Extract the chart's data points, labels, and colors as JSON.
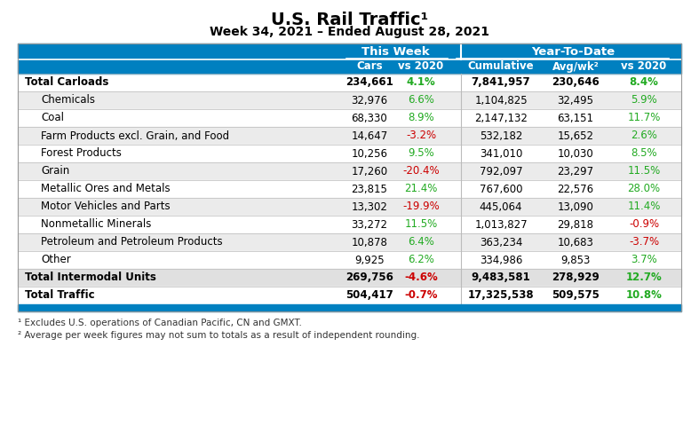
{
  "title": "U.S. Rail Traffic¹",
  "subtitle": "Week 34, 2021 – Ended August 28, 2021",
  "header_bg": "#0080C0",
  "rows": [
    {
      "label": "Total Carloads",
      "bold": true,
      "indent": false,
      "cars": "234,661",
      "vs2020_w": "4.1%",
      "vs2020_w_color": "#22AA22",
      "cumulative": "7,841,957",
      "avgwk": "230,646",
      "vs2020_y": "8.4%",
      "vs2020_y_color": "#22AA22",
      "row_bg": "#FFFFFF"
    },
    {
      "label": "Chemicals",
      "bold": false,
      "indent": true,
      "cars": "32,976",
      "vs2020_w": "6.6%",
      "vs2020_w_color": "#22AA22",
      "cumulative": "1,104,825",
      "avgwk": "32,495",
      "vs2020_y": "5.9%",
      "vs2020_y_color": "#22AA22",
      "row_bg": "#EBEBEB"
    },
    {
      "label": "Coal",
      "bold": false,
      "indent": true,
      "cars": "68,330",
      "vs2020_w": "8.9%",
      "vs2020_w_color": "#22AA22",
      "cumulative": "2,147,132",
      "avgwk": "63,151",
      "vs2020_y": "11.7%",
      "vs2020_y_color": "#22AA22",
      "row_bg": "#FFFFFF"
    },
    {
      "label": "Farm Products excl. Grain, and Food",
      "bold": false,
      "indent": true,
      "cars": "14,647",
      "vs2020_w": "-3.2%",
      "vs2020_w_color": "#CC0000",
      "cumulative": "532,182",
      "avgwk": "15,652",
      "vs2020_y": "2.6%",
      "vs2020_y_color": "#22AA22",
      "row_bg": "#EBEBEB"
    },
    {
      "label": "Forest Products",
      "bold": false,
      "indent": true,
      "cars": "10,256",
      "vs2020_w": "9.5%",
      "vs2020_w_color": "#22AA22",
      "cumulative": "341,010",
      "avgwk": "10,030",
      "vs2020_y": "8.5%",
      "vs2020_y_color": "#22AA22",
      "row_bg": "#FFFFFF"
    },
    {
      "label": "Grain",
      "bold": false,
      "indent": true,
      "cars": "17,260",
      "vs2020_w": "-20.4%",
      "vs2020_w_color": "#CC0000",
      "cumulative": "792,097",
      "avgwk": "23,297",
      "vs2020_y": "11.5%",
      "vs2020_y_color": "#22AA22",
      "row_bg": "#EBEBEB"
    },
    {
      "label": "Metallic Ores and Metals",
      "bold": false,
      "indent": true,
      "cars": "23,815",
      "vs2020_w": "21.4%",
      "vs2020_w_color": "#22AA22",
      "cumulative": "767,600",
      "avgwk": "22,576",
      "vs2020_y": "28.0%",
      "vs2020_y_color": "#22AA22",
      "row_bg": "#FFFFFF"
    },
    {
      "label": "Motor Vehicles and Parts",
      "bold": false,
      "indent": true,
      "cars": "13,302",
      "vs2020_w": "-19.9%",
      "vs2020_w_color": "#CC0000",
      "cumulative": "445,064",
      "avgwk": "13,090",
      "vs2020_y": "11.4%",
      "vs2020_y_color": "#22AA22",
      "row_bg": "#EBEBEB"
    },
    {
      "label": "Nonmetallic Minerals",
      "bold": false,
      "indent": true,
      "cars": "33,272",
      "vs2020_w": "11.5%",
      "vs2020_w_color": "#22AA22",
      "cumulative": "1,013,827",
      "avgwk": "29,818",
      "vs2020_y": "-0.9%",
      "vs2020_y_color": "#CC0000",
      "row_bg": "#FFFFFF"
    },
    {
      "label": "Petroleum and Petroleum Products",
      "bold": false,
      "indent": true,
      "cars": "10,878",
      "vs2020_w": "6.4%",
      "vs2020_w_color": "#22AA22",
      "cumulative": "363,234",
      "avgwk": "10,683",
      "vs2020_y": "-3.7%",
      "vs2020_y_color": "#CC0000",
      "row_bg": "#EBEBEB"
    },
    {
      "label": "Other",
      "bold": false,
      "indent": true,
      "cars": "9,925",
      "vs2020_w": "6.2%",
      "vs2020_w_color": "#22AA22",
      "cumulative": "334,986",
      "avgwk": "9,853",
      "vs2020_y": "3.7%",
      "vs2020_y_color": "#22AA22",
      "row_bg": "#FFFFFF"
    },
    {
      "label": "Total Intermodal Units",
      "bold": true,
      "indent": false,
      "cars": "269,756",
      "vs2020_w": "-4.6%",
      "vs2020_w_color": "#CC0000",
      "cumulative": "9,483,581",
      "avgwk": "278,929",
      "vs2020_y": "12.7%",
      "vs2020_y_color": "#22AA22",
      "row_bg": "#E0E0E0"
    },
    {
      "label": "Total Traffic",
      "bold": true,
      "indent": false,
      "cars": "504,417",
      "vs2020_w": "-0.7%",
      "vs2020_w_color": "#CC0000",
      "cumulative": "17,325,538",
      "avgwk": "509,575",
      "vs2020_y": "10.8%",
      "vs2020_y_color": "#22AA22",
      "row_bg": "#FFFFFF"
    }
  ],
  "footnotes": [
    "¹ Excludes U.S. operations of Canadian Pacific, CN and GMXT.",
    "² Average per week figures may not sum to totals as a result of independent rounding."
  ],
  "fig_width": 7.87,
  "fig_height": 4.97,
  "dpi": 100
}
